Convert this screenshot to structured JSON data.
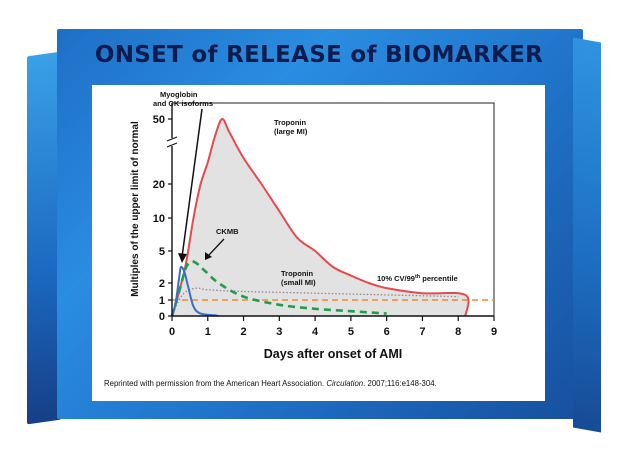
{
  "slide": {
    "title": "ONSET of RELEASE of BIOMARKER",
    "citation_prefix": "Reprinted with permission from the American Heart Association.",
    "citation_journal": "Circulation",
    "citation_suffix": ". 2007;116:e148-304."
  },
  "chart_data": {
    "type": "line",
    "title": "",
    "xlabel": "Days after onset of AMI",
    "ylabel": "Multiples of the upper limit of normal",
    "xlim": [
      0,
      9
    ],
    "x_ticks": [
      "0",
      "1",
      "2",
      "3",
      "4",
      "5",
      "6",
      "7",
      "8",
      "9"
    ],
    "y_ticks": [
      "0",
      "1",
      "2",
      "5",
      "10",
      "20",
      "50"
    ],
    "y_axis_break": "between 20 and 50",
    "grid": false,
    "series": [
      {
        "name": "Myoglobin and CK isoforms",
        "color": "#3a6fc9",
        "style": "solid",
        "points": [
          [
            0,
            0
          ],
          [
            0.1,
            0.8
          ],
          [
            0.2,
            2.5
          ],
          [
            0.25,
            3.5
          ],
          [
            0.35,
            3
          ],
          [
            0.45,
            1.8
          ],
          [
            0.6,
            0.6
          ],
          [
            0.8,
            0.15
          ],
          [
            1.2,
            0.05
          ],
          [
            1.3,
            0
          ]
        ]
      },
      {
        "name": "Troponin (large MI)",
        "color": "#e64a4a",
        "style": "solid",
        "points": [
          [
            0,
            0
          ],
          [
            0.2,
            1.5
          ],
          [
            0.4,
            4
          ],
          [
            0.6,
            10
          ],
          [
            0.8,
            20
          ],
          [
            1.0,
            30
          ],
          [
            1.2,
            42
          ],
          [
            1.4,
            50
          ],
          [
            1.6,
            44
          ],
          [
            2,
            32
          ],
          [
            2.5,
            20
          ],
          [
            3,
            12
          ],
          [
            3.5,
            7
          ],
          [
            4,
            5
          ],
          [
            4.5,
            3.5
          ],
          [
            5,
            2.7
          ],
          [
            5.5,
            2
          ],
          [
            6,
            1.7
          ],
          [
            7,
            1.4
          ],
          [
            8.2,
            1.3
          ],
          [
            8.2,
            0
          ]
        ]
      },
      {
        "name": "CKMB",
        "color": "#1e9e4a",
        "style": "dashed",
        "points": [
          [
            0,
            0
          ],
          [
            0.2,
            1.5
          ],
          [
            0.4,
            3.5
          ],
          [
            0.6,
            4
          ],
          [
            0.9,
            3.2
          ],
          [
            1.3,
            2
          ],
          [
            2,
            1.2
          ],
          [
            3,
            0.7
          ],
          [
            4,
            0.45
          ],
          [
            5,
            0.3
          ],
          [
            6,
            0.15
          ]
        ]
      },
      {
        "name": "Troponin (small MI)",
        "color": "#8a8a8a",
        "style": "dotted",
        "points": [
          [
            0,
            0
          ],
          [
            0.2,
            1
          ],
          [
            0.4,
            1.5
          ],
          [
            0.7,
            1.7
          ],
          [
            1,
            1.6
          ],
          [
            2,
            1.5
          ],
          [
            3,
            1.45
          ],
          [
            4,
            1.4
          ],
          [
            5,
            1.35
          ],
          [
            6,
            1.3
          ],
          [
            7,
            1.25
          ],
          [
            8,
            1.2
          ]
        ]
      },
      {
        "name": "10% CV/99th percentile",
        "color": "#f28a2e",
        "style": "dashed",
        "points": [
          [
            0,
            1
          ],
          [
            9,
            1
          ]
        ]
      }
    ],
    "labels": {
      "myoglobin_line1": "Myoglobin",
      "myoglobin_line2": "and CK isoforms",
      "troponin_large_line1": "Troponin",
      "troponin_large_line2": "(large MI)",
      "ckmb": "CKMB",
      "troponin_small_line1": "Troponin",
      "troponin_small_line2": "(small MI)",
      "percentile_prefix": "10% CV/99",
      "percentile_sup": "th",
      "percentile_suffix": " percentile"
    }
  }
}
